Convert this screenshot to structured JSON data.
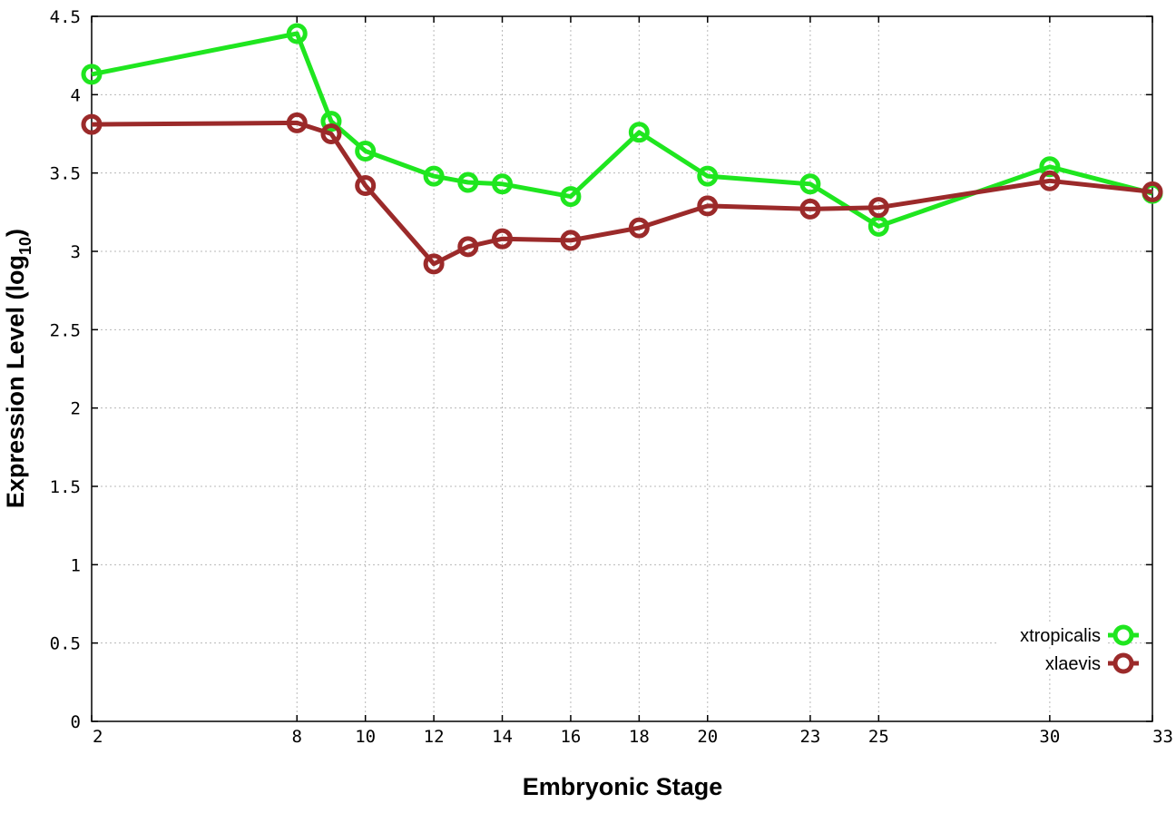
{
  "chart_data": {
    "type": "line",
    "xlabel": "Embryonic Stage",
    "ylabel_main": "Expression Level (log",
    "ylabel_sub": "10",
    "ylabel_close": ")",
    "x_ticks": [
      2,
      8,
      10,
      12,
      14,
      16,
      18,
      20,
      23,
      25,
      30,
      33
    ],
    "y_ticks": [
      "0",
      "0.5",
      "1",
      "1.5",
      "2",
      "2.5",
      "3",
      "3.5",
      "4",
      "4.5"
    ],
    "ylim": [
      0,
      4.5
    ],
    "grid": true,
    "legend_position": "bottom-right",
    "x": [
      2,
      8,
      9,
      10,
      12,
      13,
      14,
      16,
      18,
      20,
      23,
      25,
      30,
      33
    ],
    "series": [
      {
        "name": "xtropicalis",
        "color": "#1fe61f",
        "values": [
          4.13,
          4.39,
          3.83,
          3.64,
          3.48,
          3.44,
          3.43,
          3.35,
          3.76,
          3.48,
          3.43,
          3.16,
          3.54,
          3.37
        ]
      },
      {
        "name": "xlaevis",
        "color": "#9b2a2a",
        "values": [
          3.81,
          3.82,
          3.75,
          3.42,
          2.92,
          3.03,
          3.08,
          3.07,
          3.15,
          3.29,
          3.27,
          3.28,
          3.45,
          3.38
        ]
      }
    ]
  }
}
